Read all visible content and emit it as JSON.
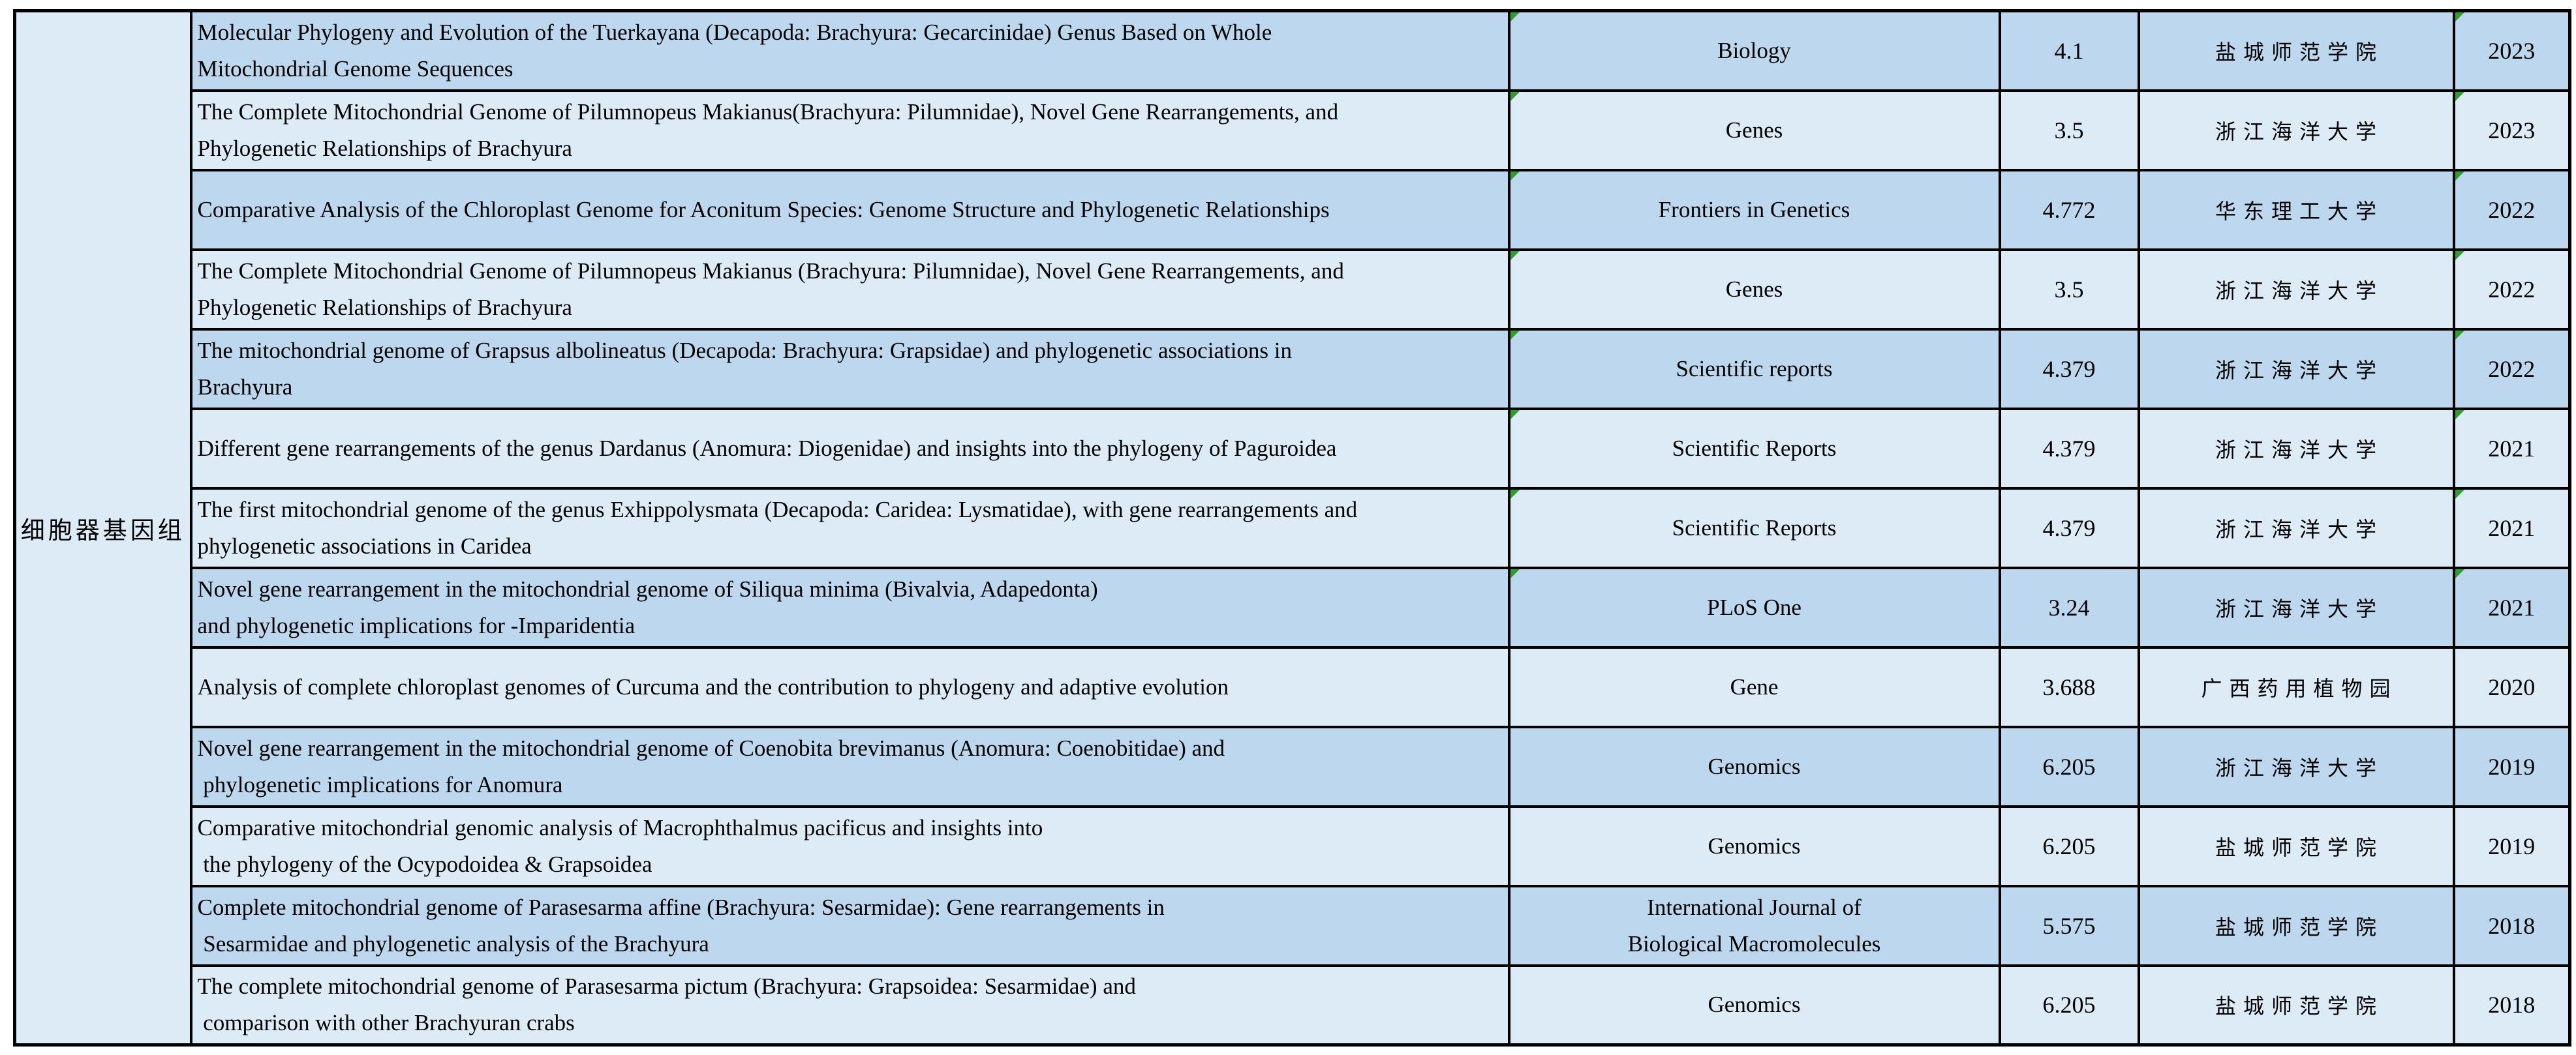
{
  "category": {
    "label": "细胞器基因组"
  },
  "colors": {
    "row_dark": "#BDD7EE",
    "row_light": "#DDEBF7",
    "border": "#000000",
    "flag_green": "#2E9E2E"
  },
  "rows": [
    {
      "title": "Molecular Phylogeny and Evolution of the Tuerkayana (Decapoda: Brachyura: Gecarcinidae) Genus Based on Whole\nMitochondrial Genome Sequences",
      "journal": "Biology",
      "impact": "4.1",
      "institution": "盐城师范学院",
      "year": "2023",
      "shade": "dark",
      "flag": true
    },
    {
      "title": "The Complete Mitochondrial Genome of Pilumnopeus Makianus(Brachyura: Pilumnidae), Novel Gene Rearrangements, and\nPhylogenetic Relationships of Brachyura",
      "journal": "Genes",
      "impact": "3.5",
      "institution": "浙江海洋大学",
      "year": "2023",
      "shade": "light",
      "flag": true
    },
    {
      "title": "Comparative Analysis of the Chloroplast Genome for Aconitum Species: Genome Structure and Phylogenetic Relationships",
      "journal": "Frontiers in Genetics",
      "impact": "4.772",
      "institution": "华东理工大学",
      "year": "2022",
      "shade": "dark",
      "flag": true
    },
    {
      "title": "The Complete Mitochondrial Genome of Pilumnopeus Makianus (Brachyura: Pilumnidae), Novel Gene Rearrangements, and\nPhylogenetic Relationships of Brachyura",
      "journal": "Genes",
      "impact": "3.5",
      "institution": "浙江海洋大学",
      "year": "2022",
      "shade": "light",
      "flag": true
    },
    {
      "title": "The mitochondrial genome of Grapsus albolineatus (Decapoda: Brachyura: Grapsidae) and phylogenetic associations in\nBrachyura",
      "journal": "Scientific reports",
      "impact": "4.379",
      "institution": "浙江海洋大学",
      "year": "2022",
      "shade": "dark",
      "flag": true
    },
    {
      "title": "Different gene rearrangements of the genus Dardanus (Anomura: Diogenidae) and insights into the phylogeny of Paguroidea",
      "journal": "Scientific Reports",
      "impact": "4.379",
      "institution": "浙江海洋大学",
      "year": "2021",
      "shade": "light",
      "flag": true
    },
    {
      "title": "The first mitochondrial genome of the genus Exhippolysmata (Decapoda: Caridea: Lysmatidae), with gene rearrangements and\nphylogenetic associations in Caridea",
      "journal": "Scientific Reports",
      "impact": "4.379",
      "institution": "浙江海洋大学",
      "year": "2021",
      "shade": "light",
      "flag": true
    },
    {
      "title": "Novel gene rearrangement in the mitochondrial genome of Siliqua minima (Bivalvia, Adapedonta)\nand phylogenetic implications for -Imparidentia",
      "journal": "PLoS One",
      "impact": "3.24",
      "institution": "浙江海洋大学",
      "year": "2021",
      "shade": "dark",
      "flag": true
    },
    {
      "title": "Analysis of complete chloroplast genomes of Curcuma and the contribution to phylogeny and adaptive evolution",
      "journal": "Gene",
      "impact": "3.688",
      "institution": "广西药用植物园",
      "year": "2020",
      "shade": "light",
      "flag": false
    },
    {
      "title": "Novel gene rearrangement in the mitochondrial genome of Coenobita brevimanus (Anomura: Coenobitidae) and\n phylogenetic implications for Anomura",
      "journal": "Genomics",
      "impact": "6.205",
      "institution": "浙江海洋大学",
      "year": "2019",
      "shade": "dark",
      "flag": false
    },
    {
      "title": "Comparative mitochondrial genomic analysis of Macrophthalmus pacificus and insights into\n the phylogeny of the Ocypodoidea & Grapsoidea",
      "journal": "Genomics",
      "impact": "6.205",
      "institution": "盐城师范学院",
      "year": "2019",
      "shade": "light",
      "flag": false
    },
    {
      "title": "Complete mitochondrial genome of Parasesarma affine (Brachyura: Sesarmidae): Gene rearrangements in\n Sesarmidae and phylogenetic analysis of the Brachyura",
      "journal": "International Journal of\nBiological Macromolecules",
      "impact": "5.575",
      "institution": "盐城师范学院",
      "year": "2018",
      "shade": "dark",
      "flag": false
    },
    {
      "title": "The complete mitochondrial genome of Parasesarma pictum (Brachyura: Grapsoidea: Sesarmidae) and\n comparison with other Brachyuran crabs",
      "journal": "Genomics",
      "impact": "6.205",
      "institution": "盐城师范学院",
      "year": "2018",
      "shade": "light",
      "flag": false
    }
  ]
}
